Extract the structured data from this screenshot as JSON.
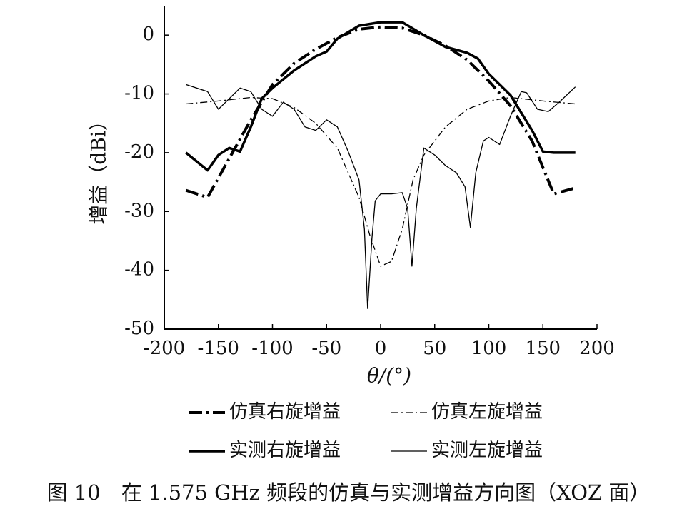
{
  "chart_data": {
    "type": "line",
    "xlabel": "θ/(°)",
    "ylabel": "增益（dBi）",
    "caption": "图 10　在 1.575 GHz 频段的仿真与实测增益方向图（XOZ 面）",
    "xlim": [
      -200,
      200
    ],
    "ylim": [
      -50,
      5
    ],
    "xticks": [
      -200,
      -150,
      -100,
      -50,
      0,
      50,
      100,
      150,
      200
    ],
    "yticks": [
      0,
      -10,
      -20,
      -30,
      -40,
      -50
    ],
    "series": [
      {
        "name": "仿真右旋增益",
        "color": "#000000",
        "width": 4,
        "dash": "18,6,3,6",
        "x": [
          -180,
          -160,
          -140,
          -120,
          -100,
          -80,
          -60,
          -40,
          -20,
          0,
          20,
          40,
          60,
          80,
          100,
          120,
          140,
          160,
          180
        ],
        "values": [
          -26.4,
          -27.6,
          -21,
          -14.4,
          -8.4,
          -4.8,
          -2.4,
          -0.4,
          1,
          1.4,
          1.2,
          0,
          -1.8,
          -4.2,
          -7.8,
          -12,
          -18,
          -27,
          -26
        ]
      },
      {
        "name": "仿真左旋增益",
        "color": "#000000",
        "width": 1.3,
        "dash": "10,4,2,4",
        "x": [
          -180,
          -150,
          -120,
          -100,
          -80,
          -60,
          -40,
          -20,
          -10,
          0,
          10,
          20,
          30,
          40,
          60,
          80,
          100,
          120,
          150,
          180
        ],
        "values": [
          -11.7,
          -11.2,
          -10.6,
          -10.8,
          -12.3,
          -15,
          -19.2,
          -27.6,
          -34,
          -39.3,
          -38.5,
          -33,
          -24.6,
          -20.4,
          -15.6,
          -12.6,
          -11.2,
          -10.6,
          -11.2,
          -11.7
        ]
      },
      {
        "name": "实测右旋增益",
        "color": "#000000",
        "width": 3.5,
        "dash": "none",
        "x": [
          -180,
          -160,
          -150,
          -140,
          -130,
          -120,
          -110,
          -100,
          -80,
          -60,
          -50,
          -40,
          -20,
          0,
          20,
          40,
          60,
          80,
          90,
          100,
          120,
          140,
          150,
          160,
          180
        ],
        "values": [
          -20,
          -23,
          -20.4,
          -19.2,
          -19.8,
          -15.6,
          -10.8,
          -9,
          -6,
          -3.6,
          -2.8,
          -0.6,
          1.6,
          2.2,
          2.2,
          0,
          -2,
          -3,
          -4,
          -6.6,
          -10.2,
          -16.2,
          -19.8,
          -20,
          -20
        ]
      },
      {
        "name": "实测左旋增益",
        "color": "#000000",
        "width": 1.3,
        "dash": "none",
        "x": [
          -180,
          -160,
          -150,
          -130,
          -120,
          -110,
          -100,
          -90,
          -80,
          -70,
          -60,
          -50,
          -40,
          -30,
          -20,
          -15,
          -12,
          -8,
          -5,
          0,
          10,
          20,
          25,
          29,
          33,
          40,
          50,
          60,
          70,
          78,
          83,
          88,
          95,
          100,
          110,
          120,
          130,
          135,
          145,
          155,
          165,
          180
        ],
        "values": [
          -8.4,
          -9.6,
          -12.6,
          -9,
          -9.6,
          -12.6,
          -13.8,
          -11.4,
          -12.6,
          -15.6,
          -16.2,
          -14.4,
          -15.6,
          -19.8,
          -24.6,
          -33,
          -46.5,
          -34.5,
          -28.2,
          -27,
          -27,
          -26.8,
          -29.5,
          -39.3,
          -29.5,
          -19.2,
          -20.4,
          -22.2,
          -23.4,
          -25.8,
          -32.7,
          -23.4,
          -18,
          -17.4,
          -18.6,
          -13.8,
          -9.6,
          -9.8,
          -12.6,
          -13,
          -11.4,
          -8.8
        ]
      }
    ]
  }
}
